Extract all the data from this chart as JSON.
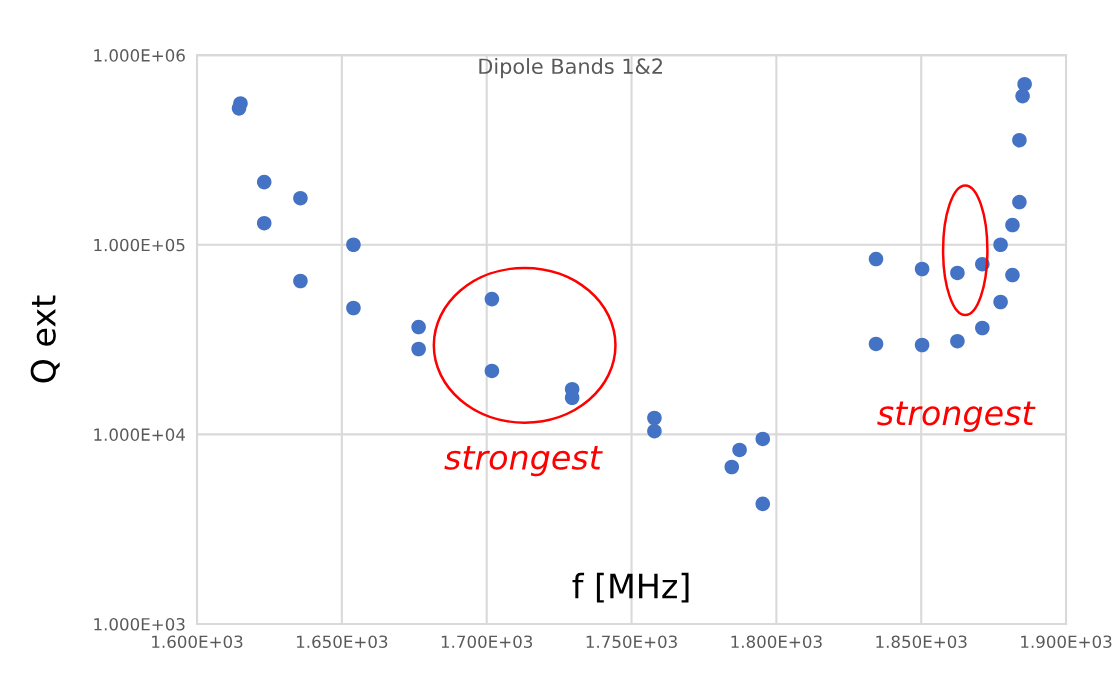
{
  "chart_data": {
    "type": "scatter",
    "title": "Dipole Bands 1&2",
    "xlabel": "f [MHz]",
    "ylabel": "Q ext",
    "x": [
      1615.0,
      1614.5,
      1623.2,
      1623.2,
      1635.7,
      1635.7,
      1654.0,
      1654.0,
      1676.5,
      1676.5,
      1701.8,
      1701.8,
      1729.5,
      1729.5,
      1757.9,
      1757.9,
      1784.6,
      1787.3,
      1795.3,
      1795.3,
      1834.4,
      1834.4,
      1850.3,
      1850.3,
      1862.5,
      1862.5,
      1871.1,
      1871.1,
      1877.4,
      1877.4,
      1881.5,
      1881.5,
      1883.9,
      1883.9,
      1885.0,
      1885.7
    ],
    "series": [
      {
        "color": "#4472c4",
        "values": [
          556000,
          524000,
          214000,
          130000,
          176000,
          64400,
          100000,
          46400,
          36800,
          28200,
          51700,
          21600,
          17300,
          15600,
          12200,
          10400,
          6730,
          8280,
          9460,
          4300,
          84100,
          30000,
          74500,
          29600,
          71000,
          31000,
          79000,
          36400,
          100000,
          49900,
          127000,
          69200,
          168000,
          356000,
          608000,
          703000
        ]
      }
    ],
    "log": "y",
    "marker": "circle",
    "grid": true,
    "legend": false,
    "xlim": [
      1600,
      1900
    ],
    "ylim": [
      1000,
      1000000
    ],
    "xticks": [
      {
        "value": 1600,
        "label": "1.600E+03"
      },
      {
        "value": 1650,
        "label": "1.650E+03"
      },
      {
        "value": 1700,
        "label": "1.700E+03"
      },
      {
        "value": 1750,
        "label": "1.750E+03"
      },
      {
        "value": 1800,
        "label": "1.800E+03"
      },
      {
        "value": 1850,
        "label": "1.850E+03"
      },
      {
        "value": 1900,
        "label": "1.900E+03"
      }
    ],
    "yticks": [
      {
        "value": 1000,
        "label": "1.000E+03"
      },
      {
        "value": 10000,
        "label": "1.000E+04"
      },
      {
        "value": 100000,
        "label": "1.000E+05"
      },
      {
        "value": 1000000,
        "label": "1.000E+06"
      }
    ],
    "annotations": [
      "strongest",
      "strongest"
    ]
  }
}
